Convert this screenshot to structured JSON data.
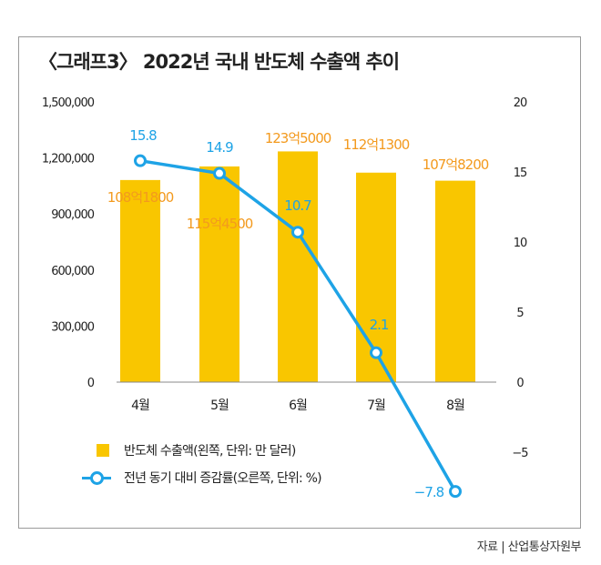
{
  "chart_data": {
    "type": "bar+line",
    "title": "〈그래프3〉 2022년 국내 반도체 수출액 추이",
    "categories": [
      "4월",
      "5월",
      "6월",
      "7월",
      "8월"
    ],
    "series": [
      {
        "name": "반도체 수출액(왼쪽, 단위: 만 달러)",
        "type": "bar",
        "axis": "left",
        "values": [
          1081800,
          1154500,
          1235000,
          1121300,
          1078200
        ],
        "labels": [
          "108억1800",
          "115억4500",
          "123억5000",
          "112억1300",
          "107억8200"
        ],
        "color": "#f9c600",
        "label_color": "#f39a1e"
      },
      {
        "name": "전년 동기 대비 증감률(오른쪽, 단위: %)",
        "type": "line",
        "axis": "right",
        "values": [
          15.8,
          14.9,
          10.7,
          2.1,
          -7.8
        ],
        "labels": [
          "15.8",
          "14.9",
          "10.7",
          "2.1",
          "−7.8"
        ],
        "color": "#1ea3e6"
      }
    ],
    "left_axis": {
      "ylim": [
        0,
        1500000
      ],
      "ticks": [
        "0",
        "300,000",
        "600,000",
        "900,000",
        "1,200,000",
        "1,500,000"
      ]
    },
    "right_axis": {
      "ylim": [
        -10,
        20
      ],
      "ticks": [
        {
          "v": 20,
          "t": "20"
        },
        {
          "v": 15,
          "t": "15"
        },
        {
          "v": 10,
          "t": "10"
        },
        {
          "v": 5,
          "t": "5"
        },
        {
          "v": 0,
          "t": "0"
        },
        {
          "v": -5,
          "t": "−5"
        }
      ]
    },
    "grid": false,
    "legend_placement": "bottom-left"
  },
  "source": "자료 | 산업통상자원부"
}
